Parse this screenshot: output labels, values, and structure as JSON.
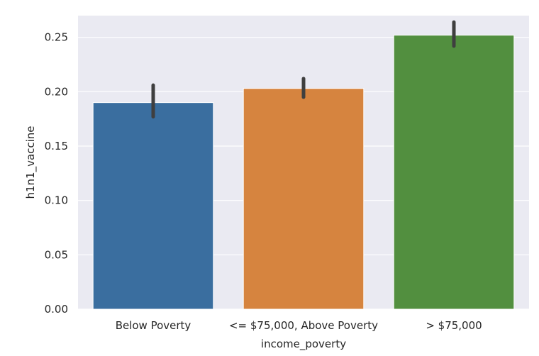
{
  "chart_data": {
    "type": "bar",
    "title": "",
    "xlabel": "income_poverty",
    "ylabel": "h1n1_vaccine",
    "categories": [
      "Below Poverty",
      "<= $75,000, Above Poverty",
      "> $75,000"
    ],
    "values": [
      0.19,
      0.203,
      0.252
    ],
    "error_bars": [
      {
        "low": 0.177,
        "high": 0.206
      },
      {
        "low": 0.195,
        "high": 0.212
      },
      {
        "low": 0.242,
        "high": 0.264
      }
    ],
    "colors": [
      "#3a6e9f",
      "#d6843f",
      "#528f3f"
    ],
    "ylim": [
      0,
      0.27
    ],
    "yticks": [
      0.0,
      0.05,
      0.1,
      0.15,
      0.2,
      0.25
    ],
    "ytick_labels": [
      "0.00",
      "0.05",
      "0.10",
      "0.15",
      "0.20",
      "0.25"
    ],
    "grid": true,
    "style": {
      "background": "#eaeaf2",
      "grid_color": "#ffffff",
      "errorbar_color": "#3f3f3f"
    }
  }
}
